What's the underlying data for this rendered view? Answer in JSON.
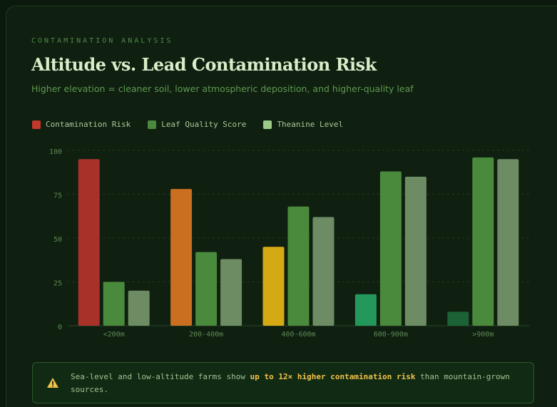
{
  "chart_data": {
    "type": "bar",
    "eyebrow": "CONTAMINATION ANALYSIS",
    "title": "Altitude vs. Lead Contamination Risk",
    "subtitle": "Higher elevation = cleaner soil, lower atmospheric deposition, and higher-quality leaf",
    "categories": [
      "<200m",
      "200-400m",
      "400-600m",
      "600-900m",
      ">900m"
    ],
    "series": [
      {
        "name": "Contamination Risk",
        "color": "#c0392b",
        "bar_colors": [
          "#a8322a",
          "#c96f1f",
          "#d4a914",
          "#24985a",
          "#1b6336"
        ],
        "values": [
          95,
          78,
          45,
          18,
          8
        ]
      },
      {
        "name": "Leaf Quality Score",
        "color": "#4a8a3c",
        "values": [
          25,
          42,
          68,
          88,
          96
        ]
      },
      {
        "name": "Theanine Level",
        "color": "#6e8c63",
        "legend_color": "#9ccc88",
        "values": [
          20,
          38,
          62,
          85,
          95
        ]
      }
    ],
    "ylim": [
      0,
      100
    ],
    "yticks": [
      0,
      25,
      50,
      75,
      100
    ],
    "grid": true,
    "callout": {
      "before": "Sea-level and low-altitude farms show ",
      "highlight": "up to 12× higher contamination risk",
      "after": " than mountain-grown sources."
    }
  }
}
